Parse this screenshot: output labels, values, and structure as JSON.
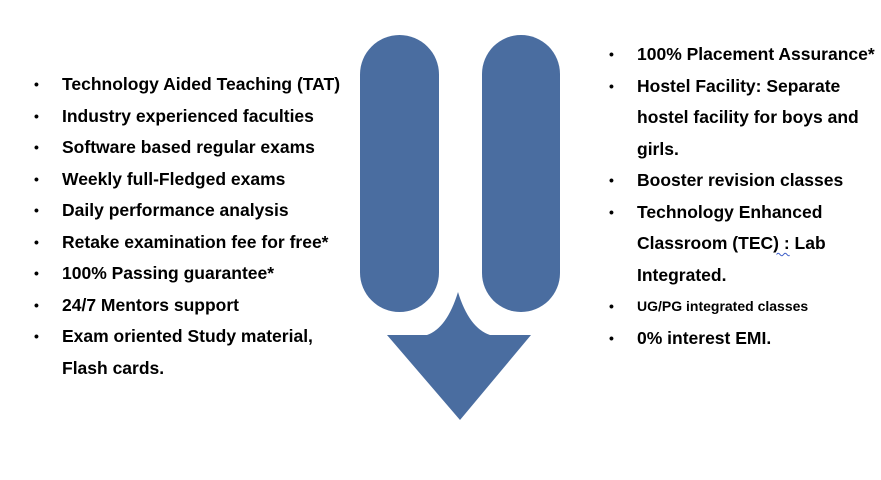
{
  "left_list": [
    "Technology Aided Teaching (TAT)",
    "Industry experienced faculties",
    "Software based regular exams",
    "Weekly full-Fledged exams",
    "Daily performance analysis",
    "Retake examination fee for free*",
    "100% Passing guarantee*",
    "24/7 Mentors support",
    "Exam oriented Study material, Flash cards."
  ],
  "right_list": [
    "100% Placement Assurance*",
    "Hostel Facility: Separate hostel facility for boys and girls.",
    "Booster revision classes",
    {
      "before": "Technology Enhanced Classroom (TEC",
      "underlined": ") :",
      "after": " Lab Integrated."
    },
    "UG/PG integrated classes",
    "0% interest EMI."
  ],
  "bullet_char": "•",
  "colors": {
    "logo": "#4a6da0",
    "text": "#000000"
  },
  "logo_icon": "pen-nib-logo-icon"
}
